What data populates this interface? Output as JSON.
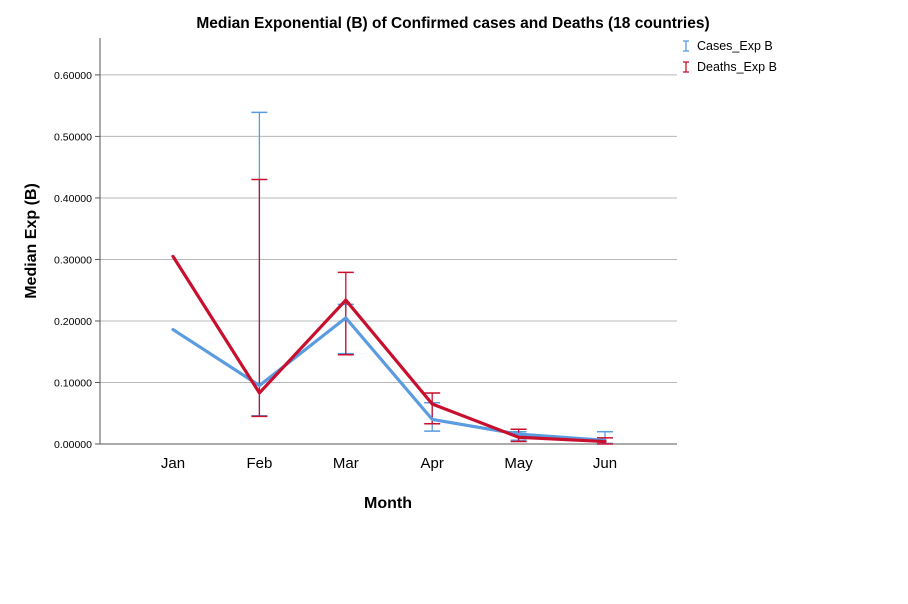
{
  "chart_data": {
    "type": "line",
    "title": "Median Exponential (B) of Confirmed cases and Deaths (18 countries)",
    "xlabel": "Month",
    "ylabel": "Median Exp (B)",
    "categories": [
      "Jan",
      "Feb",
      "Mar",
      "Apr",
      "May",
      "Jun"
    ],
    "ylim": [
      0,
      0.66
    ],
    "yticks": [
      0,
      0.1,
      0.2,
      0.3,
      0.4,
      0.5,
      0.6
    ],
    "ytick_labels": [
      "0.00000",
      "0.10000",
      "0.20000",
      "0.30000",
      "0.40000",
      "0.50000",
      "0.60000"
    ],
    "grid": true,
    "legend_position": "top-right",
    "series": [
      {
        "name": "Cases_Exp B",
        "color": "#5B9BE0",
        "values": [
          0.186,
          0.095,
          0.205,
          0.04,
          0.016,
          0.006
        ],
        "error_low": [
          null,
          0.046,
          0.147,
          0.021,
          0.006,
          0.001
        ],
        "error_high": [
          null,
          0.539,
          0.227,
          0.067,
          0.02,
          0.02
        ]
      },
      {
        "name": "Deaths_Exp B",
        "color": "#C8102E",
        "values": [
          0.305,
          0.083,
          0.234,
          0.065,
          0.011,
          0.004
        ],
        "error_low": [
          null,
          0.045,
          0.145,
          0.033,
          0.004,
          0.0
        ],
        "error_high": [
          null,
          0.43,
          0.279,
          0.083,
          0.024,
          0.01
        ]
      }
    ]
  }
}
